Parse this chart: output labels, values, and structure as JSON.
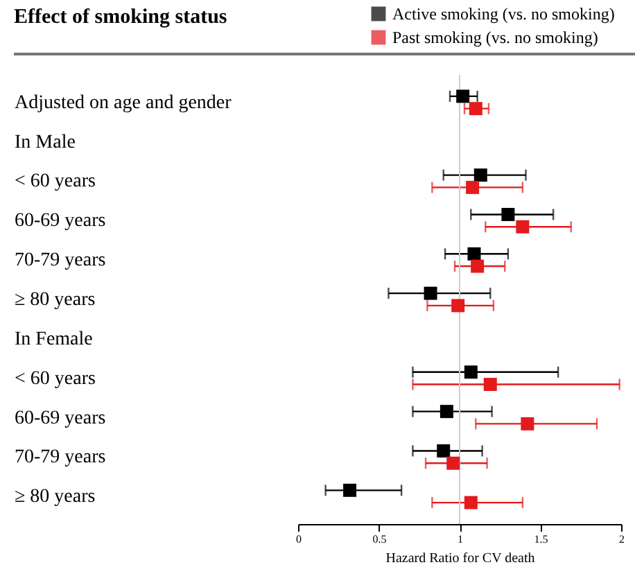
{
  "chart_data": {
    "type": "scatter",
    "title": "Effect of smoking status",
    "xlabel": "Hazard Ratio for CV death",
    "categories": [
      "Adjusted on age and gender",
      "In Male",
      "< 60 years",
      "60-69 years",
      "70-79 years",
      "≥ 80 years",
      "In Female",
      "< 60 years",
      "60-69 years",
      "70-79 years",
      "≥ 80 years"
    ],
    "series": [
      {
        "name": "Active smoking (vs. no smoking)",
        "color": "#000000",
        "values": [
          1.02,
          null,
          1.13,
          1.3,
          1.09,
          0.82,
          null,
          1.07,
          0.92,
          0.9,
          0.32
        ],
        "errors": [
          [
            0.94,
            1.11
          ],
          null,
          [
            0.9,
            1.41
          ],
          [
            1.07,
            1.58
          ],
          [
            0.91,
            1.3
          ],
          [
            0.56,
            1.19
          ],
          null,
          [
            0.71,
            1.61
          ],
          [
            0.71,
            1.2
          ],
          [
            0.71,
            1.14
          ],
          [
            0.17,
            0.64
          ]
        ]
      },
      {
        "name": "Past smoking (vs. no smoking)",
        "color": "#e41a1c",
        "values": [
          1.1,
          null,
          1.08,
          1.39,
          1.11,
          0.99,
          null,
          1.19,
          1.42,
          0.96,
          1.07
        ],
        "errors": [
          [
            1.03,
            1.18
          ],
          null,
          [
            0.83,
            1.39
          ],
          [
            1.16,
            1.69
          ],
          [
            0.97,
            1.28
          ],
          [
            0.8,
            1.21
          ],
          null,
          [
            0.71,
            1.99
          ],
          [
            1.1,
            1.85
          ],
          [
            0.79,
            1.17
          ],
          [
            0.83,
            1.39
          ]
        ]
      }
    ],
    "xlim": [
      0,
      2
    ],
    "xticks": [
      0,
      0.5,
      1,
      1.5,
      2
    ],
    "ref_lines": [
      {
        "axis": "x",
        "value": 1,
        "color": "#cccccc"
      }
    ],
    "orientation": "horizontal",
    "marker": "square",
    "legend": "top right",
    "grid": false
  }
}
